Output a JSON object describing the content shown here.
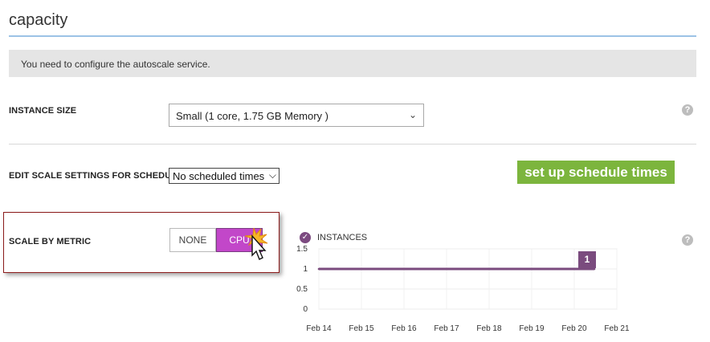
{
  "page": {
    "title": "capacity"
  },
  "notice": {
    "text": "You need to configure the autoscale service."
  },
  "instance_size": {
    "label": "INSTANCE SIZE",
    "selected": "Small (1 core, 1.75 GB Memory )"
  },
  "schedule": {
    "label": "EDIT SCALE SETTINGS FOR SCHEDULE",
    "selected": "No scheduled times",
    "button_label": "set up schedule times",
    "button_color": "#7cb53d"
  },
  "scale_metric": {
    "label": "SCALE BY METRIC",
    "options": [
      "NONE",
      "CPU"
    ],
    "selected": "CPU",
    "selected_color": "#c247c9"
  },
  "help_icon_glyph": "?",
  "chart_data": {
    "type": "line",
    "legend": "INSTANCES",
    "x_ticks": [
      "Feb 14",
      "Feb 15",
      "Feb 16",
      "Feb 17",
      "Feb 18",
      "Feb 19",
      "Feb 20",
      "Feb 21"
    ],
    "y_ticks": [
      "1.5",
      "1",
      "0.5",
      "0"
    ],
    "ylim": [
      0,
      1.5
    ],
    "series": [
      {
        "values": [
          1,
          1,
          1,
          1,
          1,
          1,
          1,
          1
        ]
      }
    ],
    "current_value_label": "1",
    "series_color": "#7a4b7e"
  }
}
